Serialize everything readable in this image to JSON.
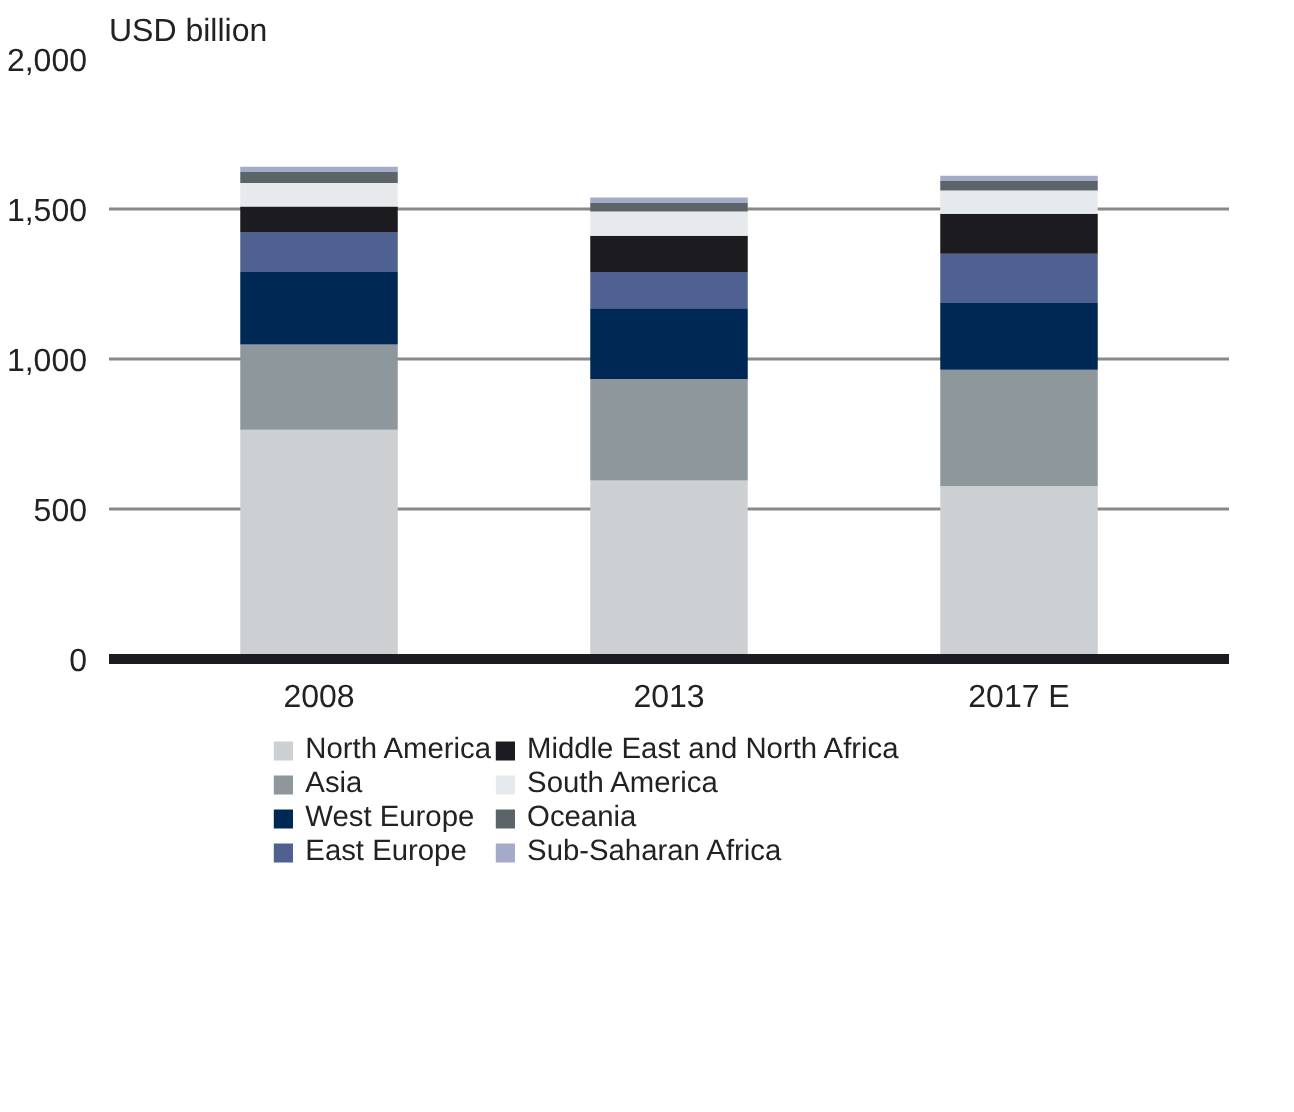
{
  "chart_data": {
    "type": "bar",
    "stacked": true,
    "ylabel": "USD billion",
    "categories": [
      "2008",
      "2013",
      "2017 E"
    ],
    "series": [
      {
        "name": "North America",
        "color": "#ccd0d3",
        "values": [
          764,
          595,
          577
        ]
      },
      {
        "name": "Asia",
        "color": "#8e979c",
        "values": [
          284,
          338,
          387
        ]
      },
      {
        "name": "West Europe",
        "color": "#002855",
        "values": [
          242,
          236,
          223
        ]
      },
      {
        "name": "East Europe",
        "color": "#4f6190",
        "values": [
          133,
          121,
          164
        ]
      },
      {
        "name": "Middle East and North Africa",
        "color": "#1c1b1f",
        "values": [
          85,
          121,
          133
        ]
      },
      {
        "name": "South America",
        "color": "#e6eaec",
        "values": [
          79,
          81,
          78
        ]
      },
      {
        "name": "Oceania",
        "color": "#5a6469",
        "values": [
          36,
          28,
          31
        ]
      },
      {
        "name": "Sub-Saharan Africa",
        "color": "#a4abc9",
        "values": [
          18,
          18,
          18
        ]
      }
    ],
    "ylim": [
      0,
      2000
    ],
    "yticks": [
      0,
      {
        "value": 500,
        "label": "500"
      },
      {
        "value": 1000,
        "label": "1,000"
      },
      {
        "value": 1500,
        "label": "1,500"
      },
      {
        "value": 2000,
        "label": "2,000"
      }
    ],
    "grid": "y",
    "legend": "bottom"
  }
}
